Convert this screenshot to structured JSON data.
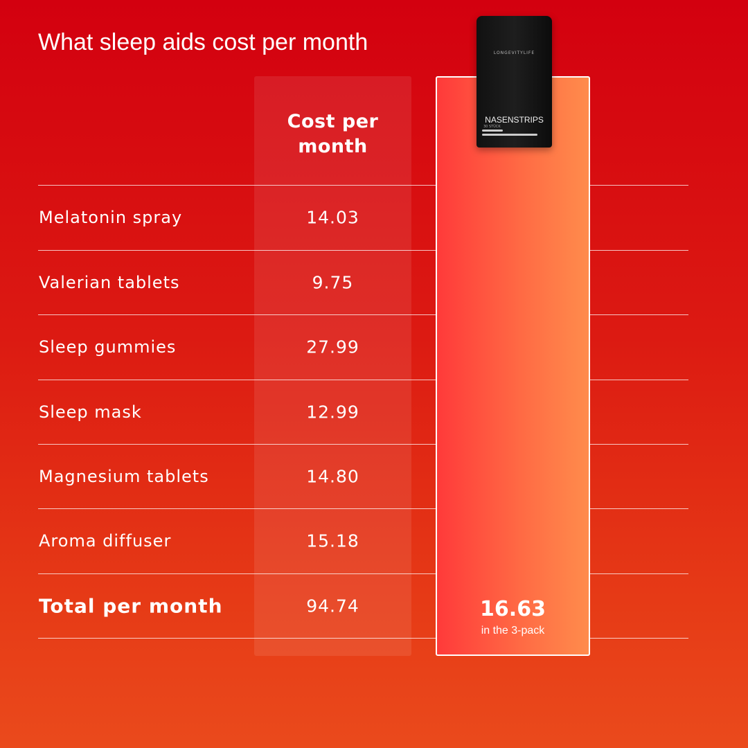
{
  "header": {
    "title": "What sleep aids cost per month"
  },
  "table": {
    "column_header": "Cost per month",
    "rows": [
      [
        "Melatonin spray",
        "14.03"
      ],
      [
        "Valerian tablets",
        "9.75"
      ],
      [
        "Sleep gummies",
        "27.99"
      ],
      [
        "Sleep mask",
        "12.99"
      ],
      [
        "Magnesium tablets",
        "14.80"
      ],
      [
        "Aroma diffuser",
        "15.18"
      ]
    ],
    "total": [
      "Total per month",
      "94.74"
    ]
  },
  "product": {
    "price": "16.63",
    "note": "in the 3-pack",
    "brand": "LONGEVITYLIFE",
    "name": "NASENSTRIPS",
    "count": "30 STÜCK"
  }
}
